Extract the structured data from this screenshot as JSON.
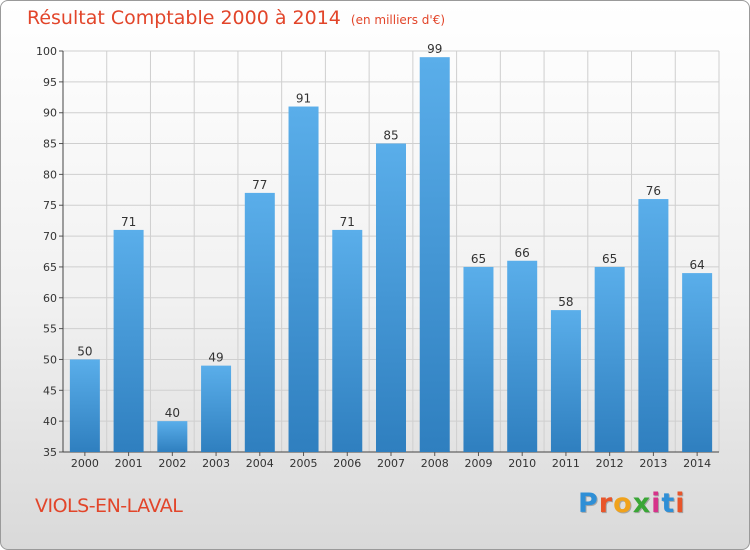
{
  "title": "Résultat Comptable 2000 à 2014",
  "title_unit": "(en milliers d'€)",
  "commune": "VIOLS-EN-LAVAL",
  "logo": {
    "letters": [
      "P",
      "r",
      "o",
      "x",
      "i",
      "t",
      "i"
    ],
    "colors": [
      "#2f8fd6",
      "#e8552a",
      "#f0a21c",
      "#3aa636",
      "#d6338a",
      "#2f8fd6",
      "#e8552a"
    ]
  },
  "colors": {
    "bar_top": "#5aaeea",
    "bar_bottom": "#2f7fbf",
    "title": "#e2452a",
    "grid": "#cfcfcf",
    "axis_text": "#333333"
  },
  "chart_data": {
    "type": "bar",
    "title": "Résultat Comptable 2000 à 2014",
    "categories": [
      "2000",
      "2001",
      "2002",
      "2003",
      "2004",
      "2005",
      "2006",
      "2007",
      "2008",
      "2009",
      "2010",
      "2011",
      "2012",
      "2013",
      "2014"
    ],
    "values": [
      50,
      71,
      40,
      49,
      77,
      91,
      71,
      85,
      99,
      65,
      66,
      58,
      65,
      76,
      64
    ],
    "ylim": [
      35,
      100
    ],
    "yticks": [
      35,
      40,
      45,
      50,
      55,
      60,
      65,
      70,
      75,
      80,
      85,
      90,
      95,
      100
    ],
    "xlabel": "",
    "ylabel": "",
    "grid": true,
    "legend": "none"
  }
}
